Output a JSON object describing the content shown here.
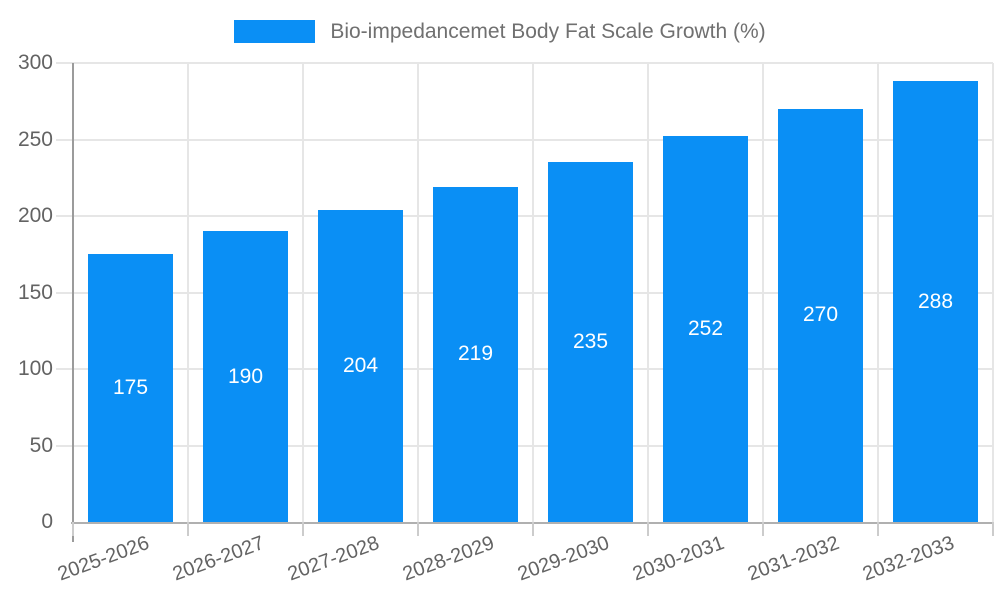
{
  "chart_data": {
    "type": "bar",
    "title": "Bio-impedancemet Body Fat Scale Growth (%)",
    "categories": [
      "2025-2026",
      "2026-2027",
      "2027-2028",
      "2028-2029",
      "2029-2030",
      "2030-2031",
      "2031-2032",
      "2032-2033"
    ],
    "values": [
      175,
      190,
      204,
      219,
      235,
      252,
      270,
      288
    ],
    "ylim": [
      0,
      300
    ],
    "yticks": [
      0,
      50,
      100,
      150,
      200,
      250,
      300
    ],
    "grid": true,
    "legend_position": "top",
    "legend_entries": [
      "Bio-impedancemet Body Fat Scale Growth (%)"
    ],
    "bar_value_labels_shown": true
  },
  "colors": {
    "bar": "#0a8ff5",
    "bar_value_label": "#ffffff",
    "grid_line": "#e6e6e6",
    "axis_line_x": "#b0b0b0",
    "axis_line_y": "#9b9b9b",
    "x_tick_mark": "#cccccc",
    "tick_text": "#636363",
    "legend_text": "#707070",
    "background": "#ffffff"
  }
}
